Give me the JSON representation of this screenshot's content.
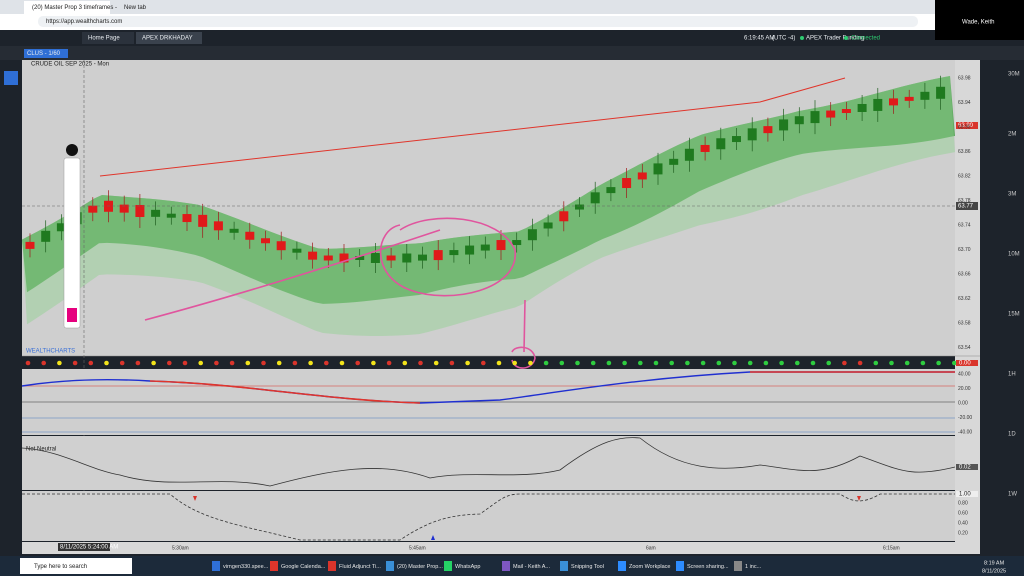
{
  "browser": {
    "tabs": [
      "(20) Master Prop 3 timeframes -",
      "New tab"
    ],
    "url": "https://app.wealthcharts.com",
    "user": "Wade, Keith"
  },
  "app": {
    "tabs": [
      "Home Page",
      "APEX DRKHADAY"
    ],
    "clock": "6:19:45 AM",
    "timezone": "(UTC -4)",
    "account": "APEX Trader Funding",
    "status": "Connected",
    "symbol_chip": "CLUS - 1/60"
  },
  "chart": {
    "title": "CRUDE OIL SEP 2025 - Mon",
    "price_axis": [
      "63.98",
      "63.94",
      "63.90",
      "63.86",
      "63.82",
      "63.78",
      "63.74",
      "63.70",
      "63.66",
      "63.62",
      "63.58",
      "63.54"
    ],
    "price_marker": "63.77",
    "last_price": "63.90",
    "logo": "WEALTHCHARTS",
    "indicator1_axis": [
      "40.00",
      "20.00",
      "0.00",
      "-20.00",
      "-40.00"
    ],
    "indicator1_value": "0.00",
    "indicator2_label": "Net Neutral",
    "indicator2_value": "0.02",
    "indicator3_axis": [
      "0.80",
      "0.60",
      "0.40",
      "0.20"
    ],
    "indicator3_value": "1.00",
    "time_axis": [
      "5:30am",
      "5:45am",
      "6am",
      "6:15am"
    ],
    "cursor_time": "8/11/2025 5:24:00 AM",
    "timeframes": [
      "30M",
      "2M",
      "3M",
      "10M",
      "15M",
      "1H",
      "1D",
      "1W"
    ]
  },
  "taskbar": {
    "search": "Type here to search",
    "apps": [
      "virngen330.spee...",
      "Google Calenda...",
      "Fluid Adjunct Ti...",
      "(20) Master Prop...",
      "WhatsApp",
      "Mail - Keith A...",
      "Snipping Tool",
      "Zoom Workplace",
      "Screen sharing...",
      "1 inc..."
    ],
    "time": "8:19 AM",
    "date": "8/11/2025"
  }
}
